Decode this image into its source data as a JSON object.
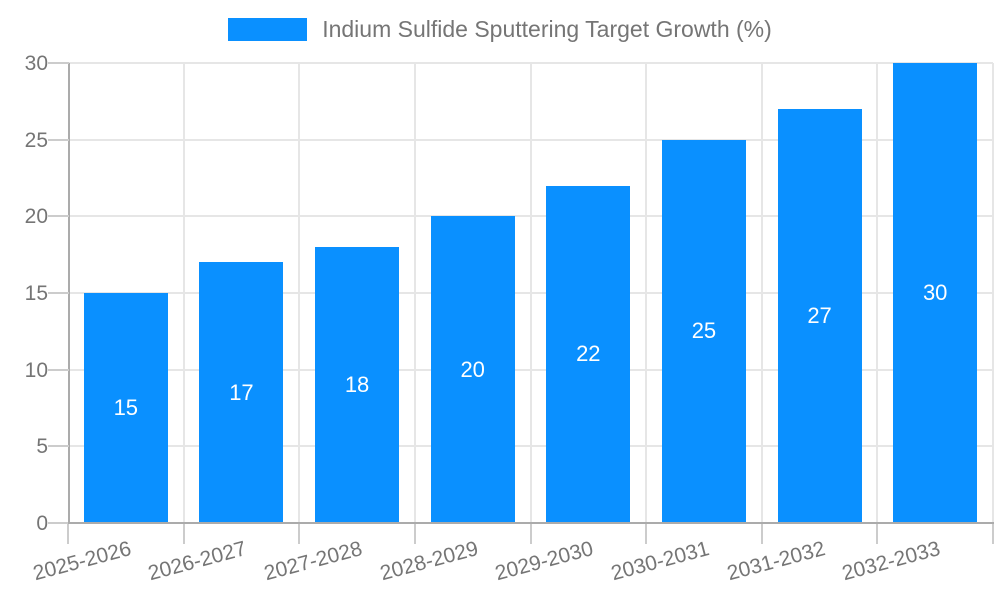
{
  "legend": {
    "series_label": "Indium Sulfide Sputtering Target Growth (%)"
  },
  "colors": {
    "bar": "#0a90ff",
    "grid": "#e6e6e6",
    "tick": "#cccccc",
    "axis": "#ababab",
    "tick_label": "#757575",
    "value_label": "#ffffff",
    "background": "#ffffff"
  },
  "chart_data": {
    "type": "bar",
    "title": "Indium Sulfide Sputtering Target Growth (%)",
    "categories": [
      "2025-2026",
      "2026-2027",
      "2027-2028",
      "2028-2029",
      "2029-2030",
      "2030-2031",
      "2031-2032",
      "2032-2033"
    ],
    "values": [
      15,
      17,
      18,
      20,
      22,
      25,
      27,
      30
    ],
    "series": [
      {
        "name": "Indium Sulfide Sputtering Target Growth (%)",
        "values": [
          15,
          17,
          18,
          20,
          22,
          25,
          27,
          30
        ]
      }
    ],
    "xlabel": "",
    "ylabel": "",
    "ylim": [
      0,
      30
    ],
    "yticks": [
      0,
      5,
      10,
      15,
      20,
      25,
      30
    ],
    "grid": true,
    "legend_position": "top-center",
    "bar_label_position": "middle",
    "x_tick_rotation_deg": -15
  }
}
